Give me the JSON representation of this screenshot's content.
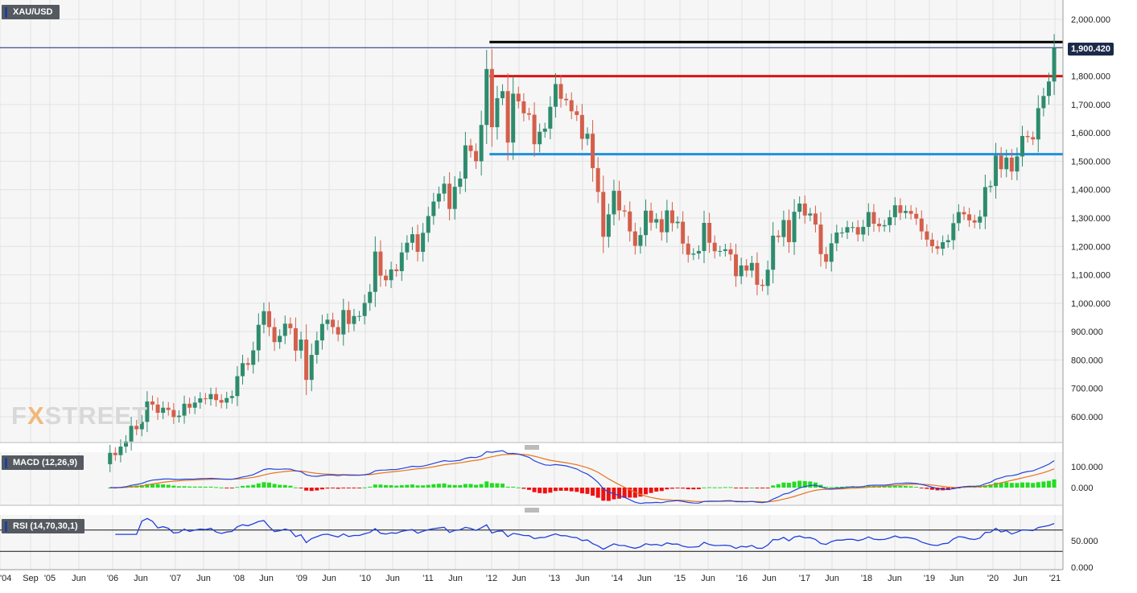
{
  "symbol": "XAU/USD",
  "current_price": "1,900.420",
  "logo": {
    "prefix": "F",
    "accent": "X",
    "suffix": "STREET"
  },
  "macd": {
    "label": "MACD (12,26,9)",
    "ticks": [
      "100.000",
      "0.000"
    ]
  },
  "rsi": {
    "label": "RSI (14,70,30,1)",
    "ticks": [
      "50.000",
      "0.000"
    ]
  },
  "colors": {
    "up": "#2e8b6e",
    "down": "#d45f4b",
    "macd": "#2244dd",
    "signal": "#e8741c",
    "hist_up": "#22dd22",
    "hist_down": "#ee1111",
    "rsi": "#1f3fdd"
  },
  "chart_data": {
    "type": "candlestick",
    "title": "XAU/USD",
    "timeframe": "monthly",
    "ylim": [
      520,
      2080
    ],
    "y_ticks": [
      "600.000",
      "700.000",
      "800.000",
      "900.000",
      "1,000.000",
      "1,100.000",
      "1,200.000",
      "1,300.000",
      "1,400.000",
      "1,500.000",
      "1,600.000",
      "1,700.000",
      "1,800.000",
      "1,900.000",
      "2,000.000"
    ],
    "x_ticks": [
      "'04",
      "Sep",
      "'05",
      "Jun",
      "'06",
      "Jun",
      "'07",
      "Jun",
      "'08",
      "Jun",
      "'09",
      "Jun",
      "'10",
      "Jun",
      "'11",
      "Jun",
      "'12",
      "Jun",
      "'13",
      "Jun",
      "'14",
      "Jun",
      "'15",
      "Jun",
      "'16",
      "Jun",
      "'17",
      "Jun",
      "'18",
      "Jun",
      "'19",
      "Jun",
      "'20",
      "Jun",
      "'21"
    ],
    "horizontal_levels": [
      {
        "price": 1920,
        "from": "2011-09",
        "color": "#000000"
      },
      {
        "price": 1800,
        "from": "2011-09",
        "color": "#e01010"
      },
      {
        "price": 1525,
        "from": "2011-09",
        "color": "#1e90dd"
      }
    ],
    "closes": [
      [
        2005,
        9,
        473
      ],
      [
        2005,
        10,
        465
      ],
      [
        2005,
        11,
        495
      ],
      [
        2005,
        12,
        513
      ],
      [
        2006,
        1,
        568
      ],
      [
        2006,
        2,
        556
      ],
      [
        2006,
        3,
        582
      ],
      [
        2006,
        4,
        654
      ],
      [
        2006,
        5,
        643
      ],
      [
        2006,
        6,
        614
      ],
      [
        2006,
        7,
        632
      ],
      [
        2006,
        8,
        624
      ],
      [
        2006,
        9,
        599
      ],
      [
        2006,
        10,
        604
      ],
      [
        2006,
        11,
        646
      ],
      [
        2006,
        12,
        632
      ],
      [
        2007,
        1,
        650
      ],
      [
        2007,
        2,
        665
      ],
      [
        2007,
        3,
        662
      ],
      [
        2007,
        4,
        680
      ],
      [
        2007,
        5,
        659
      ],
      [
        2007,
        6,
        650
      ],
      [
        2007,
        7,
        666
      ],
      [
        2007,
        8,
        673
      ],
      [
        2007,
        9,
        743
      ],
      [
        2007,
        10,
        789
      ],
      [
        2007,
        11,
        783
      ],
      [
        2007,
        12,
        834
      ],
      [
        2008,
        1,
        924
      ],
      [
        2008,
        2,
        972
      ],
      [
        2008,
        3,
        916
      ],
      [
        2008,
        4,
        863
      ],
      [
        2008,
        5,
        885
      ],
      [
        2008,
        6,
        928
      ],
      [
        2008,
        7,
        912
      ],
      [
        2008,
        8,
        833
      ],
      [
        2008,
        9,
        872
      ],
      [
        2008,
        10,
        730
      ],
      [
        2008,
        11,
        818
      ],
      [
        2008,
        12,
        869
      ],
      [
        2009,
        1,
        927
      ],
      [
        2009,
        2,
        942
      ],
      [
        2009,
        3,
        916
      ],
      [
        2009,
        4,
        890
      ],
      [
        2009,
        5,
        976
      ],
      [
        2009,
        6,
        927
      ],
      [
        2009,
        7,
        955
      ],
      [
        2009,
        8,
        955
      ],
      [
        2009,
        9,
        1001
      ],
      [
        2009,
        10,
        1040
      ],
      [
        2009,
        11,
        1182
      ],
      [
        2009,
        12,
        1097
      ],
      [
        2010,
        1,
        1081
      ],
      [
        2010,
        2,
        1119
      ],
      [
        2010,
        3,
        1113
      ],
      [
        2010,
        4,
        1179
      ],
      [
        2010,
        5,
        1213
      ],
      [
        2010,
        6,
        1243
      ],
      [
        2010,
        7,
        1181
      ],
      [
        2010,
        8,
        1248
      ],
      [
        2010,
        9,
        1307
      ],
      [
        2010,
        10,
        1358
      ],
      [
        2010,
        11,
        1386
      ],
      [
        2010,
        12,
        1421
      ],
      [
        2011,
        1,
        1332
      ],
      [
        2011,
        2,
        1410
      ],
      [
        2011,
        3,
        1439
      ],
      [
        2011,
        4,
        1556
      ],
      [
        2011,
        5,
        1536
      ],
      [
        2011,
        6,
        1500
      ],
      [
        2011,
        7,
        1628
      ],
      [
        2011,
        8,
        1825
      ],
      [
        2011,
        9,
        1620
      ],
      [
        2011,
        10,
        1722
      ],
      [
        2011,
        11,
        1747
      ],
      [
        2011,
        12,
        1566
      ],
      [
        2012,
        1,
        1738
      ],
      [
        2012,
        2,
        1711
      ],
      [
        2012,
        3,
        1669
      ],
      [
        2012,
        4,
        1664
      ],
      [
        2012,
        5,
        1560
      ],
      [
        2012,
        6,
        1604
      ],
      [
        2012,
        7,
        1615
      ],
      [
        2012,
        8,
        1692
      ],
      [
        2012,
        9,
        1772
      ],
      [
        2012,
        10,
        1720
      ],
      [
        2012,
        11,
        1715
      ],
      [
        2012,
        12,
        1676
      ],
      [
        2013,
        1,
        1663
      ],
      [
        2013,
        2,
        1579
      ],
      [
        2013,
        3,
        1597
      ],
      [
        2013,
        4,
        1476
      ],
      [
        2013,
        5,
        1392
      ],
      [
        2013,
        6,
        1234
      ],
      [
        2013,
        7,
        1313
      ],
      [
        2013,
        8,
        1396
      ],
      [
        2013,
        9,
        1327
      ],
      [
        2013,
        10,
        1323
      ],
      [
        2013,
        11,
        1253
      ],
      [
        2013,
        12,
        1202
      ],
      [
        2014,
        1,
        1240
      ],
      [
        2014,
        2,
        1326
      ],
      [
        2014,
        3,
        1284
      ],
      [
        2014,
        4,
        1296
      ],
      [
        2014,
        5,
        1250
      ],
      [
        2014,
        6,
        1327
      ],
      [
        2014,
        7,
        1282
      ],
      [
        2014,
        8,
        1287
      ],
      [
        2014,
        9,
        1210
      ],
      [
        2014,
        10,
        1171
      ],
      [
        2014,
        11,
        1175
      ],
      [
        2014,
        12,
        1184
      ],
      [
        2015,
        1,
        1283
      ],
      [
        2015,
        2,
        1213
      ],
      [
        2015,
        3,
        1183
      ],
      [
        2015,
        4,
        1184
      ],
      [
        2015,
        5,
        1190
      ],
      [
        2015,
        6,
        1172
      ],
      [
        2015,
        7,
        1095
      ],
      [
        2015,
        8,
        1133
      ],
      [
        2015,
        9,
        1115
      ],
      [
        2015,
        10,
        1142
      ],
      [
        2015,
        11,
        1065
      ],
      [
        2015,
        12,
        1061
      ],
      [
        2016,
        1,
        1118
      ],
      [
        2016,
        2,
        1238
      ],
      [
        2016,
        3,
        1233
      ],
      [
        2016,
        4,
        1293
      ],
      [
        2016,
        5,
        1215
      ],
      [
        2016,
        6,
        1322
      ],
      [
        2016,
        7,
        1351
      ],
      [
        2016,
        8,
        1309
      ],
      [
        2016,
        9,
        1316
      ],
      [
        2016,
        10,
        1277
      ],
      [
        2016,
        11,
        1173
      ],
      [
        2016,
        12,
        1146
      ],
      [
        2017,
        1,
        1211
      ],
      [
        2017,
        2,
        1249
      ],
      [
        2017,
        3,
        1249
      ],
      [
        2017,
        4,
        1268
      ],
      [
        2017,
        5,
        1268
      ],
      [
        2017,
        6,
        1242
      ],
      [
        2017,
        7,
        1269
      ],
      [
        2017,
        8,
        1321
      ],
      [
        2017,
        9,
        1280
      ],
      [
        2017,
        10,
        1271
      ],
      [
        2017,
        11,
        1275
      ],
      [
        2017,
        12,
        1303
      ],
      [
        2018,
        1,
        1345
      ],
      [
        2018,
        2,
        1318
      ],
      [
        2018,
        3,
        1325
      ],
      [
        2018,
        4,
        1315
      ],
      [
        2018,
        5,
        1298
      ],
      [
        2018,
        6,
        1253
      ],
      [
        2018,
        7,
        1224
      ],
      [
        2018,
        8,
        1201
      ],
      [
        2018,
        9,
        1192
      ],
      [
        2018,
        10,
        1215
      ],
      [
        2018,
        11,
        1222
      ],
      [
        2018,
        12,
        1282
      ],
      [
        2019,
        1,
        1321
      ],
      [
        2019,
        2,
        1313
      ],
      [
        2019,
        3,
        1292
      ],
      [
        2019,
        4,
        1284
      ],
      [
        2019,
        5,
        1305
      ],
      [
        2019,
        6,
        1409
      ],
      [
        2019,
        7,
        1413
      ],
      [
        2019,
        8,
        1520
      ],
      [
        2019,
        9,
        1472
      ],
      [
        2019,
        10,
        1513
      ],
      [
        2019,
        11,
        1464
      ],
      [
        2019,
        12,
        1517
      ],
      [
        2020,
        1,
        1589
      ],
      [
        2020,
        2,
        1585
      ],
      [
        2020,
        3,
        1577
      ],
      [
        2020,
        4,
        1687
      ],
      [
        2020,
        5,
        1730
      ],
      [
        2020,
        6,
        1781
      ],
      [
        2020,
        7,
        1900
      ]
    ]
  }
}
